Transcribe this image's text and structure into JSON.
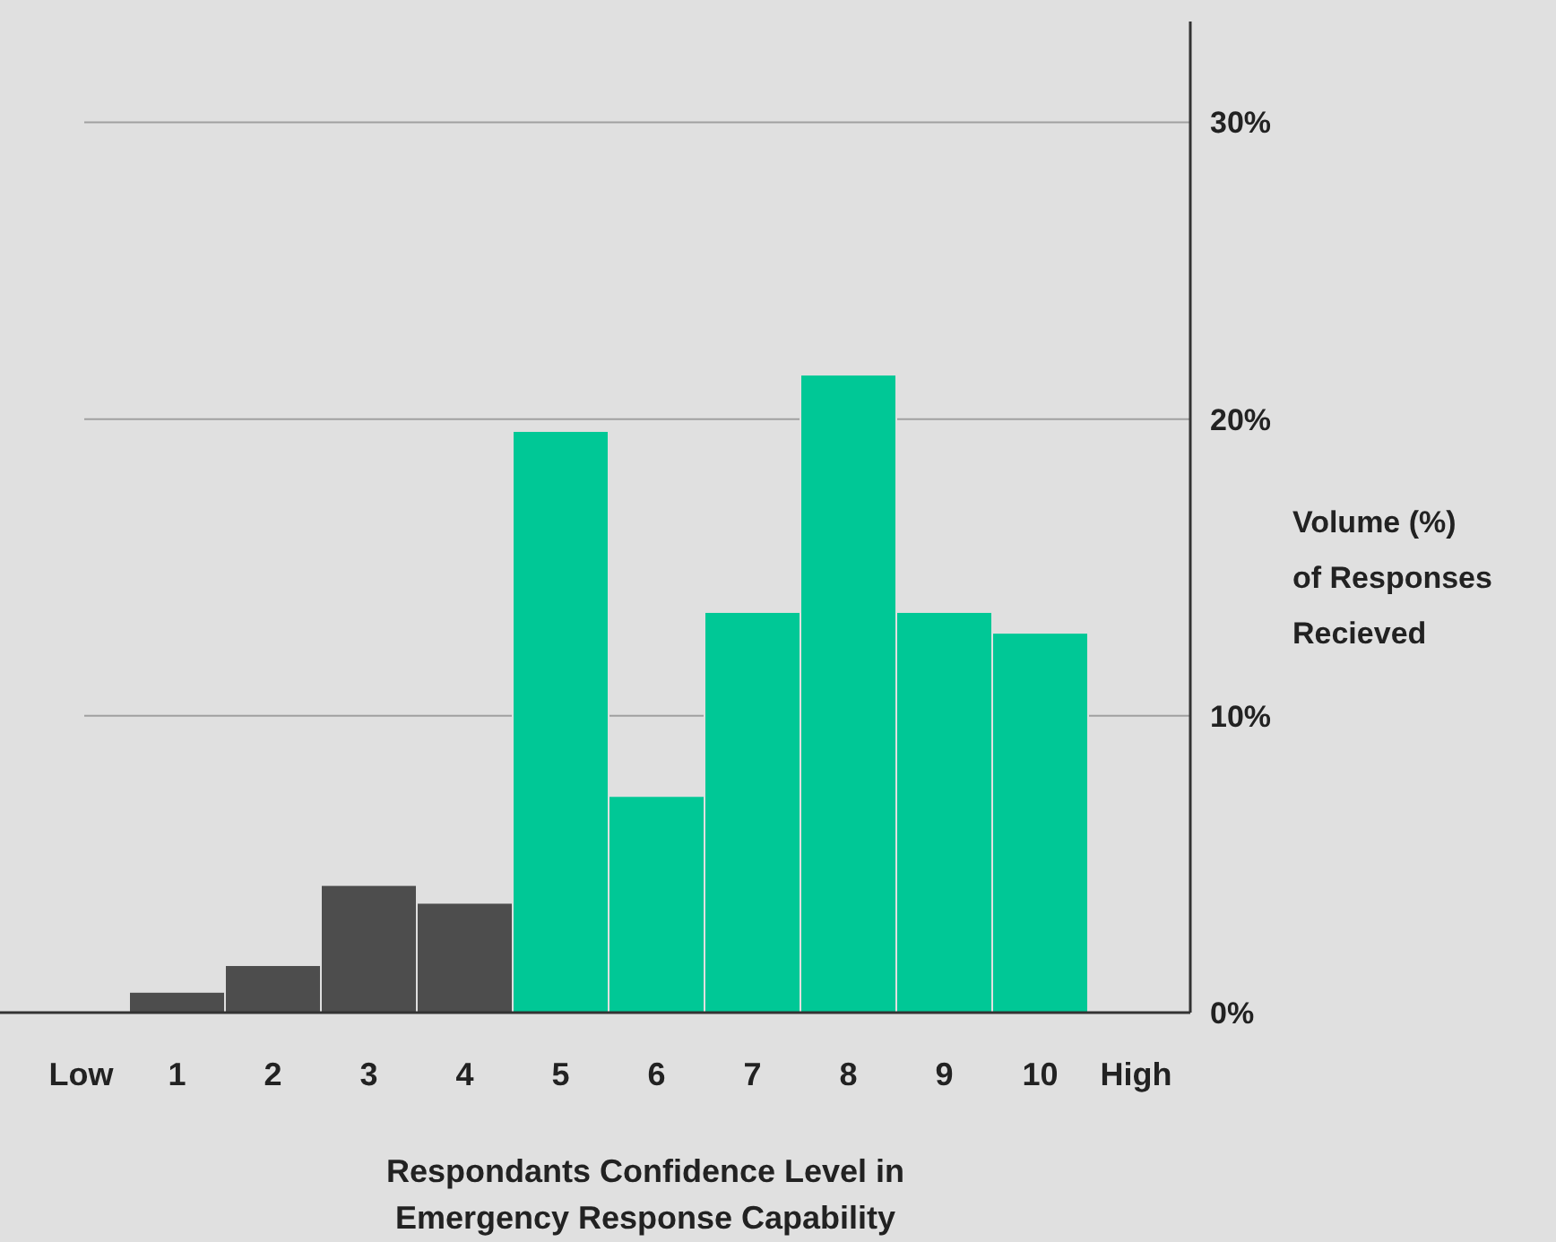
{
  "chart_data": {
    "type": "bar",
    "xlabel": "Respondants Confidence Level in Emergency Response Capability",
    "ylabel": "Volume (%) of Responses Recieved",
    "categories": [
      "Low",
      "1",
      "2",
      "3",
      "4",
      "5",
      "6",
      "7",
      "8",
      "9",
      "10",
      "High"
    ],
    "values": [
      null,
      0.7,
      1.6,
      4.3,
      3.7,
      19.6,
      7.3,
      13.5,
      21.5,
      13.5,
      12.8,
      null
    ],
    "colors": [
      null,
      "#4d4d4d",
      "#4d4d4d",
      "#4d4d4d",
      "#4d4d4d",
      "#00c896",
      "#00c896",
      "#00c896",
      "#00c896",
      "#00c896",
      "#00c896",
      null
    ],
    "ylim": [
      0,
      33.4
    ],
    "yticks": [
      {
        "value": 0,
        "label": "0%"
      },
      {
        "value": 10,
        "label": "10%"
      },
      {
        "value": 20,
        "label": "20%"
      },
      {
        "value": 30,
        "label": "30%"
      }
    ],
    "grid": "y"
  }
}
